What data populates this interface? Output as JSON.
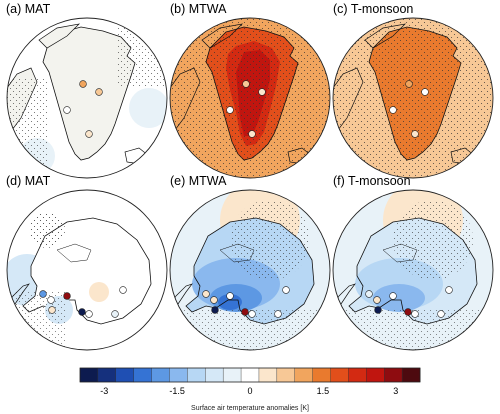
{
  "panels": [
    {
      "id": "a",
      "title": "(a) MAT",
      "region": "greenland",
      "variant": "mat",
      "stations": [
        {
          "value": 1.1
        },
        {
          "value": 0.9
        },
        {
          "value": 0.2
        },
        {
          "value": 0.0
        }
      ]
    },
    {
      "id": "b",
      "title": "(b) MTWA",
      "region": "greenland",
      "variant": "mtwa",
      "stations": [
        {
          "value": 0.9
        },
        {
          "value": 0.3
        },
        {
          "value": 0.2
        },
        {
          "value": 0.0
        }
      ]
    },
    {
      "id": "c",
      "title": "(c) T-monsoon",
      "region": "greenland",
      "variant": "tmon",
      "stations": [
        {
          "value": 1.2
        },
        {
          "value": 0.1
        },
        {
          "value": 0.2
        },
        {
          "value": 0.1
        }
      ]
    },
    {
      "id": "d",
      "title": "(d) MAT",
      "region": "antarctica",
      "variant": "mat",
      "stations": [
        {
          "value": -0.1
        },
        {
          "value": -1.8
        },
        {
          "value": 0.3
        },
        {
          "value": -3.2
        },
        {
          "value": 3.0
        },
        {
          "value": -0.2
        },
        {
          "value": -0.1
        },
        {
          "value": 0.0
        }
      ]
    },
    {
      "id": "e",
      "title": "(e) MTWA",
      "region": "antarctica",
      "variant": "mtwa",
      "stations": [
        {
          "value": 0.2
        },
        {
          "value": 0.4
        },
        {
          "value": -3.2
        },
        {
          "value": 3.0
        },
        {
          "value": 0.1
        },
        {
          "value": 0.0
        },
        {
          "value": 0.1
        },
        {
          "value": 0.0
        }
      ]
    },
    {
      "id": "f",
      "title": "(f) T-monsoon",
      "region": "antarctica",
      "variant": "tmon",
      "stations": [
        {
          "value": 0.2
        },
        {
          "value": -0.4
        },
        {
          "value": -3.2
        },
        {
          "value": 3.0
        },
        {
          "value": 0.1
        },
        {
          "value": 0.0
        },
        {
          "value": 0.1
        },
        {
          "value": 0.0
        }
      ]
    }
  ],
  "colorbar": {
    "title": "Surface air temperature anomalies [K]",
    "tick_labels": [
      "-3",
      "-1.5",
      "0",
      "1.5",
      "3"
    ],
    "colors": [
      "#0d1b4f",
      "#15307d",
      "#1f4fb3",
      "#3573d4",
      "#5d98e3",
      "#8ab8ee",
      "#b7d7f4",
      "#d5e8f7",
      "#e8f2f8",
      "#ffffff",
      "#fbe6cc",
      "#f7c896",
      "#f1a55e",
      "#e97a2e",
      "#e24f1b",
      "#d32a12",
      "#c0150f",
      "#8e0c10",
      "#4d0a0f"
    ],
    "range": [
      -3.5,
      3.5
    ]
  }
}
